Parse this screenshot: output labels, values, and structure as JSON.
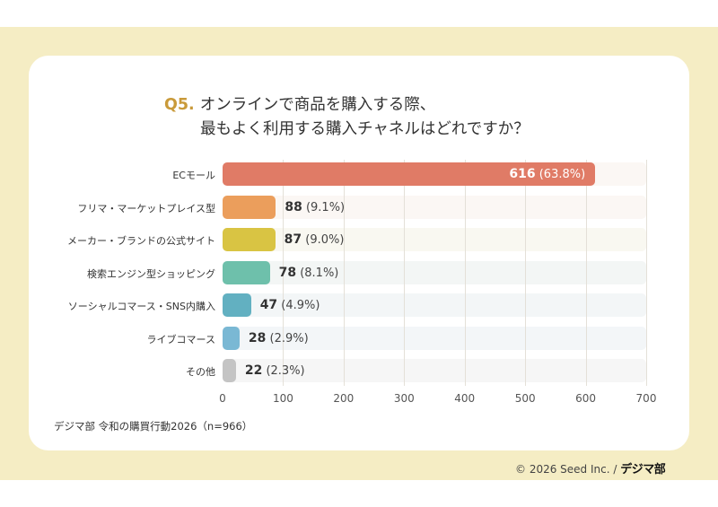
{
  "chart_data": {
    "type": "bar",
    "orientation": "horizontal",
    "title_prefix": "Q5.",
    "title_line1": "オンラインで商品を購入する際、",
    "title_line2": "最もよく利用する購入チャネルはどれですか？",
    "categories": [
      "ECモール",
      "フリマ・マーケットプレイス型",
      "メーカー・ブランドの公式サイト",
      "検索エンジン型ショッピング",
      "ソーシャルコマース・SNS内購入",
      "ライブコマース",
      "その他"
    ],
    "values": [
      616,
      88,
      87,
      78,
      47,
      28,
      22
    ],
    "percent_labels": [
      "(63.8%)",
      "(9.1%)",
      "(9.0%)",
      "(8.1%)",
      "(4.9%)",
      "(2.9%)",
      "(2.3%)"
    ],
    "colors": [
      "#e07b66",
      "#eb9e5c",
      "#d9c443",
      "#6ec0ab",
      "#62b0c1",
      "#7ab8d4",
      "#c4c4c4"
    ],
    "track_colors": [
      "#fbf7f4",
      "#fbf7f4",
      "#f9f8f1",
      "#f3f6f5",
      "#f3f6f7",
      "#f3f6f8",
      "#f6f6f6"
    ],
    "xlim": [
      0,
      700
    ],
    "xticks": [
      "0",
      "100",
      "200",
      "300",
      "400",
      "500",
      "600",
      "700"
    ],
    "xtick_values": [
      0,
      100,
      200,
      300,
      400,
      500,
      600,
      700
    ],
    "grid": true,
    "xlabel": "",
    "ylabel": ""
  },
  "source": "デジマ部 令和の購買行動2026（n=966）",
  "footer": {
    "copyright": "© 2026 Seed Inc. /",
    "logo": "デジマ部"
  }
}
